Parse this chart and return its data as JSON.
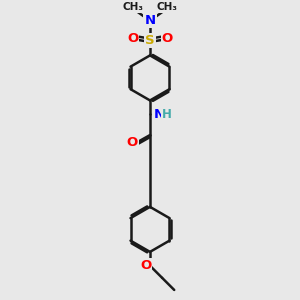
{
  "bg_color": "#e8e8e8",
  "bond_color": "#1a1a1a",
  "bond_width": 1.8,
  "colors": {
    "C": "#1a1a1a",
    "N": "#0000ff",
    "O": "#ff0000",
    "S": "#ccaa00",
    "H": "#44aaaa"
  },
  "font_size": 8.5
}
